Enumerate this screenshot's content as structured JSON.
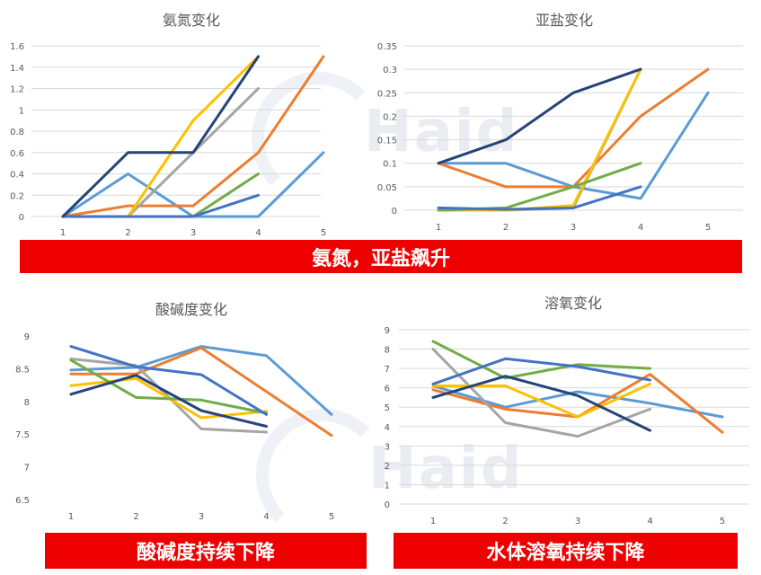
{
  "watermark_text": "Haid",
  "banners": {
    "top": "氨氮，亚盐飙升",
    "bottom_left": "酸碱度持续下降",
    "bottom_right": "水体溶氧持续下降"
  },
  "palette": {
    "blue": "#4472c4",
    "orange": "#ed7d31",
    "gray": "#a5a5a5",
    "yellow": "#ffc000",
    "lightblue": "#5b9bd5",
    "green": "#70ad47",
    "darkblue": "#264478",
    "banner_red": "#ee0000"
  },
  "chart_data": [
    {
      "id": "ammonia",
      "type": "line",
      "title": "氨氮变化",
      "xticks": [
        "1",
        "2",
        "3",
        "4",
        "5"
      ],
      "yticks": [
        "0",
        "0.2",
        "0.4",
        "0.6",
        "0.8",
        "1",
        "1.2",
        "1.4",
        "1.6"
      ],
      "ylim": [
        0,
        1.6
      ],
      "grid": true,
      "series": [
        {
          "color": "#5b9bd5",
          "x": [
            1,
            2,
            3,
            4,
            5
          ],
          "y": [
            0,
            0.4,
            0,
            0,
            0.6
          ]
        },
        {
          "color": "#ed7d31",
          "x": [
            1,
            2,
            3,
            4,
            5
          ],
          "y": [
            0,
            0.1,
            0.1,
            0.6,
            1.5
          ]
        },
        {
          "color": "#a5a5a5",
          "x": [
            1,
            2,
            3,
            4
          ],
          "y": [
            0,
            0,
            0.6,
            1.2
          ]
        },
        {
          "color": "#ffc000",
          "x": [
            1,
            2,
            3,
            4
          ],
          "y": [
            0,
            0,
            0.9,
            1.5
          ]
        },
        {
          "color": "#70ad47",
          "x": [
            1,
            2,
            3,
            4
          ],
          "y": [
            0,
            0,
            0,
            0.4
          ]
        },
        {
          "color": "#4472c4",
          "x": [
            1,
            2,
            3,
            4
          ],
          "y": [
            0,
            0,
            0,
            0.2
          ]
        },
        {
          "color": "#264478",
          "x": [
            1,
            2,
            3,
            4
          ],
          "y": [
            0,
            0.6,
            0.6,
            1.5
          ]
        }
      ]
    },
    {
      "id": "nitrite",
      "type": "line",
      "title": "亚盐变化",
      "xticks": [
        "1",
        "2",
        "3",
        "4",
        "5"
      ],
      "yticks": [
        "0",
        "0.05",
        "0.1",
        "0.15",
        "0.2",
        "0.25",
        "0.3",
        "0.35"
      ],
      "ylim": [
        0,
        0.35
      ],
      "grid": true,
      "series": [
        {
          "color": "#5b9bd5",
          "x": [
            1,
            2,
            3,
            4,
            5
          ],
          "y": [
            0.1,
            0.1,
            0.05,
            0.025,
            0.25
          ]
        },
        {
          "color": "#ed7d31",
          "x": [
            1,
            2,
            3,
            4,
            5
          ],
          "y": [
            0.1,
            0.05,
            0.05,
            0.2,
            0.3
          ]
        },
        {
          "color": "#a5a5a5",
          "x": [
            1,
            2,
            3,
            4
          ],
          "y": [
            0,
            0,
            0.005,
            0.3
          ]
        },
        {
          "color": "#ffc000",
          "x": [
            1,
            2,
            3,
            4
          ],
          "y": [
            0,
            0,
            0.01,
            0.3
          ]
        },
        {
          "color": "#70ad47",
          "x": [
            1,
            2,
            3,
            4
          ],
          "y": [
            0,
            0.005,
            0.05,
            0.1
          ]
        },
        {
          "color": "#4472c4",
          "x": [
            1,
            2,
            3,
            4
          ],
          "y": [
            0.005,
            0.002,
            0.005,
            0.05
          ]
        },
        {
          "color": "#264478",
          "x": [
            1,
            2,
            3,
            4
          ],
          "y": [
            0.1,
            0.15,
            0.25,
            0.3
          ]
        }
      ]
    },
    {
      "id": "ph",
      "type": "line",
      "title": "酸碱度变化",
      "xticks": [
        "1",
        "2",
        "3",
        "4",
        "5"
      ],
      "yticks": [
        "6.5",
        "7",
        "7.5",
        "8",
        "8.5",
        "9"
      ],
      "ylim": [
        6.5,
        9
      ],
      "grid": false,
      "series": [
        {
          "color": "#5b9bd5",
          "x": [
            1,
            2,
            3,
            4,
            5
          ],
          "y": [
            8.48,
            8.52,
            8.84,
            8.7,
            7.8
          ]
        },
        {
          "color": "#ed7d31",
          "x": [
            1,
            2,
            3,
            4,
            5
          ],
          "y": [
            8.42,
            8.42,
            8.82,
            8.15,
            7.48
          ]
        },
        {
          "color": "#a5a5a5",
          "x": [
            1,
            2,
            3,
            4
          ],
          "y": [
            8.65,
            8.55,
            7.58,
            7.53
          ]
        },
        {
          "color": "#ffc000",
          "x": [
            1,
            2,
            3,
            4
          ],
          "y": [
            8.24,
            8.35,
            7.75,
            7.85
          ]
        },
        {
          "color": "#70ad47",
          "x": [
            1,
            2,
            3,
            4
          ],
          "y": [
            8.63,
            8.06,
            8.02,
            7.82
          ]
        },
        {
          "color": "#4472c4",
          "x": [
            1,
            2,
            3,
            4
          ],
          "y": [
            8.84,
            8.53,
            8.41,
            7.8
          ]
        },
        {
          "color": "#264478",
          "x": [
            1,
            2,
            3,
            4
          ],
          "y": [
            8.11,
            8.4,
            7.86,
            7.62
          ]
        }
      ]
    },
    {
      "id": "oxygen",
      "type": "line",
      "title": "溶氧变化",
      "xticks": [
        "1",
        "2",
        "3",
        "4",
        "5"
      ],
      "yticks": [
        "0",
        "1",
        "2",
        "3",
        "4",
        "5",
        "6",
        "7",
        "8",
        "9"
      ],
      "ylim": [
        0,
        9
      ],
      "grid": true,
      "series": [
        {
          "color": "#5b9bd5",
          "x": [
            1,
            2,
            3,
            4,
            5
          ],
          "y": [
            6.1,
            5,
            5.8,
            5.2,
            4.5
          ]
        },
        {
          "color": "#ed7d31",
          "x": [
            1,
            2,
            3,
            4,
            5
          ],
          "y": [
            5.9,
            4.9,
            4.5,
            6.7,
            3.7
          ]
        },
        {
          "color": "#a5a5a5",
          "x": [
            1,
            2,
            3,
            4
          ],
          "y": [
            8,
            4.2,
            3.5,
            4.9
          ]
        },
        {
          "color": "#ffc000",
          "x": [
            1,
            2,
            3,
            4
          ],
          "y": [
            6.1,
            6.1,
            4.5,
            6.2
          ]
        },
        {
          "color": "#70ad47",
          "x": [
            1,
            2,
            3,
            4
          ],
          "y": [
            8.4,
            6.5,
            7.2,
            7
          ]
        },
        {
          "color": "#4472c4",
          "x": [
            1,
            2,
            3,
            4
          ],
          "y": [
            6.2,
            7.5,
            7.1,
            6.4
          ]
        },
        {
          "color": "#264478",
          "x": [
            1,
            2,
            3,
            4
          ],
          "y": [
            5.5,
            6.6,
            5.6,
            3.8
          ]
        }
      ]
    }
  ]
}
